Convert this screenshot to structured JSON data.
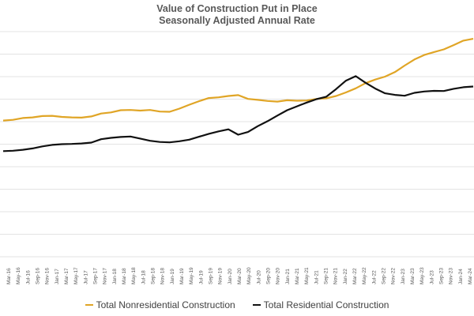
{
  "chart_data": {
    "type": "line",
    "title": "Value of Construction Put in Place",
    "subtitle": "Seasonally Adjusted Annual Rate",
    "xlabel": "",
    "ylabel": "",
    "ylim": [
      0,
      1000
    ],
    "grid": true,
    "legend_position": "bottom",
    "colors": {
      "nonresidential": "#e0a526",
      "residential": "#111111",
      "grid": "#e3e3e3"
    },
    "tick_labels": [
      "Mar-16",
      "May-16",
      "Jul-16",
      "Sep-16",
      "Nov-16",
      "Jan-17",
      "Mar-17",
      "May-17",
      "Jul-17",
      "Sep-17",
      "Nov-17",
      "Jan-18",
      "Mar-18",
      "May-18",
      "Jul-18",
      "Sep-18",
      "Nov-18",
      "Jan-19",
      "Mar-19",
      "May-19",
      "Jul-19",
      "Sep-19",
      "Nov-19",
      "Jan-20",
      "Mar-20",
      "May-20",
      "Jul-20",
      "Sep-20",
      "Nov-20",
      "Jan-21",
      "Mar-21",
      "May-21",
      "Jul-21",
      "Sep-21",
      "Nov-21",
      "Jan-22",
      "Mar-22",
      "May-22",
      "Jul-22",
      "Sep-22",
      "Nov-22",
      "Jan-23",
      "Mar-23",
      "May-23",
      "Jul-23",
      "Sep-23",
      "Nov-23",
      "Jan-24",
      "Mar-24"
    ],
    "series": [
      {
        "name": "Total Nonresidential Construction",
        "key": "nonresidential",
        "values": [
          605,
          608,
          616,
          619,
          625,
          626,
          621,
          619,
          618,
          623,
          636,
          641,
          651,
          652,
          649,
          652,
          645,
          644,
          658,
          675,
          691,
          705,
          708,
          714,
          718,
          701,
          697,
          692,
          689,
          695,
          693,
          694,
          701,
          704,
          714,
          730,
          748,
          771,
          787,
          800,
          820,
          849,
          876,
          896,
          909,
          921,
          940,
          960,
          968
        ]
      },
      {
        "name": "Total Residential Construction",
        "key": "residential",
        "values": [
          469,
          471,
          475,
          481,
          490,
          497,
          500,
          501,
          503,
          507,
          522,
          528,
          532,
          534,
          525,
          515,
          510,
          508,
          513,
          520,
          533,
          546,
          557,
          566,
          542,
          554,
          580,
          602,
          627,
          651,
          668,
          685,
          700,
          711,
          745,
          782,
          802,
          773,
          747,
          726,
          719,
          715,
          728,
          734,
          737,
          736,
          746,
          753,
          756
        ]
      }
    ]
  }
}
